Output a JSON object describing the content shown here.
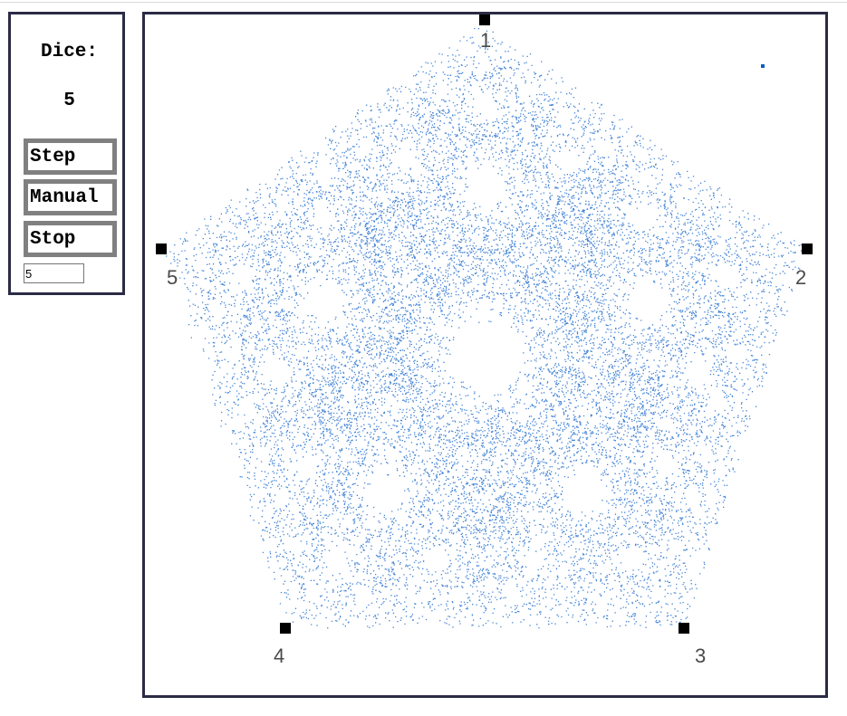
{
  "panel": {
    "dice_label": "Dice:",
    "dice_value": "5",
    "step_label": "Step",
    "manual_label": "Manual",
    "stop_label": "Stop",
    "dice_input_value": "5"
  },
  "canvas": {
    "vertex_labels": [
      "1",
      "2",
      "3",
      "4",
      "5"
    ],
    "point_color": "#0a5ec8",
    "vertex_color": "#000000",
    "frame_color": "#2b2b45",
    "jump_ratio": 0.5
  }
}
